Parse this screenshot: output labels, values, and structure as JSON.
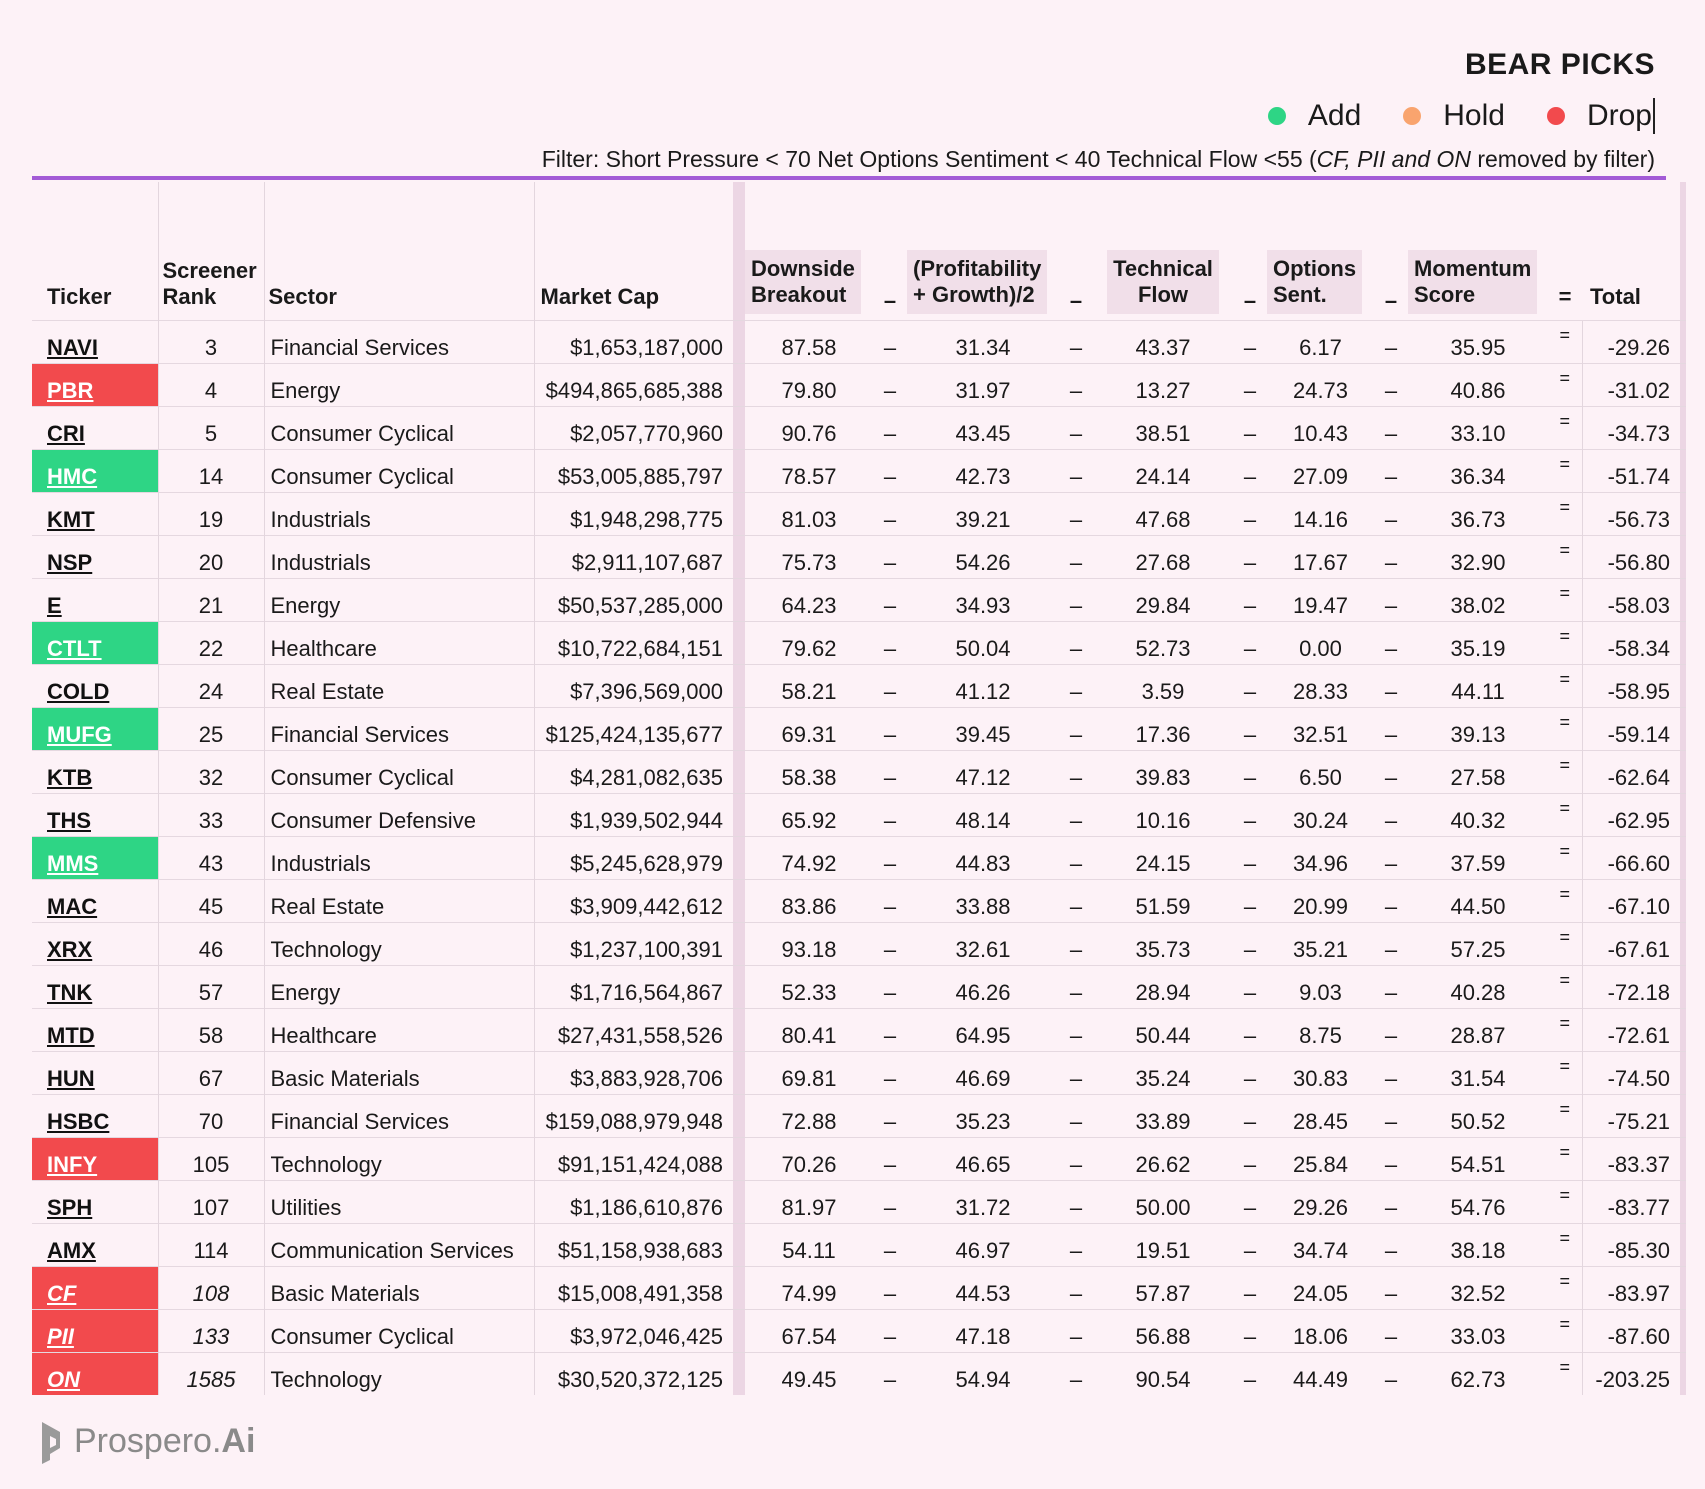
{
  "title": "BEAR PICKS",
  "legend": [
    {
      "label": "Add",
      "color": "#2ed585"
    },
    {
      "label": "Hold",
      "color": "#f9a46e"
    },
    {
      "label": "Drop",
      "color": "#f24a4d"
    }
  ],
  "filter": {
    "prefix": "Filter: Short Pressure < 70  Net Options Sentiment < 40 Technical Flow <55 (",
    "tickers": "CF, PII and ON",
    "suffix": "  removed by filter)"
  },
  "headers": {
    "ticker": "Ticker",
    "rank_1": "Screener",
    "rank_2": "Rank",
    "sector": "Sector",
    "mcap": "Market Cap",
    "downside_1": "Downside",
    "downside_2": "Breakout",
    "profit_1": "(Profitability",
    "profit_2": "+ Growth)/2",
    "tech_1": "Technical",
    "tech_2": "Flow",
    "opt_1": "Options",
    "opt_2": "Sent.",
    "mom_1": "Momentum",
    "mom_2": "Score",
    "total": "Total",
    "minus": "–",
    "equals": "="
  },
  "operators": {
    "minus": "–",
    "equals": "="
  },
  "rows": [
    {
      "ticker": "NAVI",
      "rank": "3",
      "sector": "Financial Services",
      "mcap": "$1,653,187,000",
      "downside": "87.58",
      "profit": "31.34",
      "tech": "43.37",
      "opt": "6.17",
      "mom": "35.95",
      "total": "-29.26",
      "status": "none"
    },
    {
      "ticker": "PBR",
      "rank": "4",
      "sector": "Energy",
      "mcap": "$494,865,685,388",
      "downside": "79.80",
      "profit": "31.97",
      "tech": "13.27",
      "opt": "24.73",
      "mom": "40.86",
      "total": "-31.02",
      "status": "drop"
    },
    {
      "ticker": "CRI",
      "rank": "5",
      "sector": "Consumer Cyclical",
      "mcap": "$2,057,770,960",
      "downside": "90.76",
      "profit": "43.45",
      "tech": "38.51",
      "opt": "10.43",
      "mom": "33.10",
      "total": "-34.73",
      "status": "none"
    },
    {
      "ticker": "HMC",
      "rank": "14",
      "sector": "Consumer Cyclical",
      "mcap": "$53,005,885,797",
      "downside": "78.57",
      "profit": "42.73",
      "tech": "24.14",
      "opt": "27.09",
      "mom": "36.34",
      "total": "-51.74",
      "status": "add"
    },
    {
      "ticker": "KMT",
      "rank": "19",
      "sector": "Industrials",
      "mcap": "$1,948,298,775",
      "downside": "81.03",
      "profit": "39.21",
      "tech": "47.68",
      "opt": "14.16",
      "mom": "36.73",
      "total": "-56.73",
      "status": "none"
    },
    {
      "ticker": "NSP",
      "rank": "20",
      "sector": "Industrials",
      "mcap": "$2,911,107,687",
      "downside": "75.73",
      "profit": "54.26",
      "tech": "27.68",
      "opt": "17.67",
      "mom": "32.90",
      "total": "-56.80",
      "status": "none"
    },
    {
      "ticker": "E",
      "rank": "21",
      "sector": "Energy",
      "mcap": "$50,537,285,000",
      "downside": "64.23",
      "profit": "34.93",
      "tech": "29.84",
      "opt": "19.47",
      "mom": "38.02",
      "total": "-58.03",
      "status": "none"
    },
    {
      "ticker": "CTLT",
      "rank": "22",
      "sector": "Healthcare",
      "mcap": "$10,722,684,151",
      "downside": "79.62",
      "profit": "50.04",
      "tech": "52.73",
      "opt": "0.00",
      "mom": "35.19",
      "total": "-58.34",
      "status": "add"
    },
    {
      "ticker": "COLD",
      "rank": "24",
      "sector": "Real Estate",
      "mcap": "$7,396,569,000",
      "downside": "58.21",
      "profit": "41.12",
      "tech": "3.59",
      "opt": "28.33",
      "mom": "44.11",
      "total": "-58.95",
      "status": "none"
    },
    {
      "ticker": "MUFG",
      "rank": "25",
      "sector": "Financial Services",
      "mcap": "$125,424,135,677",
      "downside": "69.31",
      "profit": "39.45",
      "tech": "17.36",
      "opt": "32.51",
      "mom": "39.13",
      "total": "-59.14",
      "status": "add"
    },
    {
      "ticker": "KTB",
      "rank": "32",
      "sector": "Consumer Cyclical",
      "mcap": "$4,281,082,635",
      "downside": "58.38",
      "profit": "47.12",
      "tech": "39.83",
      "opt": "6.50",
      "mom": "27.58",
      "total": "-62.64",
      "status": "none"
    },
    {
      "ticker": "THS",
      "rank": "33",
      "sector": "Consumer Defensive",
      "mcap": "$1,939,502,944",
      "downside": "65.92",
      "profit": "48.14",
      "tech": "10.16",
      "opt": "30.24",
      "mom": "40.32",
      "total": "-62.95",
      "status": "none"
    },
    {
      "ticker": "MMS",
      "rank": "43",
      "sector": "Industrials",
      "mcap": "$5,245,628,979",
      "downside": "74.92",
      "profit": "44.83",
      "tech": "24.15",
      "opt": "34.96",
      "mom": "37.59",
      "total": "-66.60",
      "status": "add"
    },
    {
      "ticker": "MAC",
      "rank": "45",
      "sector": "Real Estate",
      "mcap": "$3,909,442,612",
      "downside": "83.86",
      "profit": "33.88",
      "tech": "51.59",
      "opt": "20.99",
      "mom": "44.50",
      "total": "-67.10",
      "status": "none"
    },
    {
      "ticker": "XRX",
      "rank": "46",
      "sector": "Technology",
      "mcap": "$1,237,100,391",
      "downside": "93.18",
      "profit": "32.61",
      "tech": "35.73",
      "opt": "35.21",
      "mom": "57.25",
      "total": "-67.61",
      "status": "none"
    },
    {
      "ticker": "TNK",
      "rank": "57",
      "sector": "Energy",
      "mcap": "$1,716,564,867",
      "downside": "52.33",
      "profit": "46.26",
      "tech": "28.94",
      "opt": "9.03",
      "mom": "40.28",
      "total": "-72.18",
      "status": "none"
    },
    {
      "ticker": "MTD",
      "rank": "58",
      "sector": "Healthcare",
      "mcap": "$27,431,558,526",
      "downside": "80.41",
      "profit": "64.95",
      "tech": "50.44",
      "opt": "8.75",
      "mom": "28.87",
      "total": "-72.61",
      "status": "none"
    },
    {
      "ticker": "HUN",
      "rank": "67",
      "sector": "Basic Materials",
      "mcap": "$3,883,928,706",
      "downside": "69.81",
      "profit": "46.69",
      "tech": "35.24",
      "opt": "30.83",
      "mom": "31.54",
      "total": "-74.50",
      "status": "none"
    },
    {
      "ticker": "HSBC",
      "rank": "70",
      "sector": "Financial Services",
      "mcap": "$159,088,979,948",
      "downside": "72.88",
      "profit": "35.23",
      "tech": "33.89",
      "opt": "28.45",
      "mom": "50.52",
      "total": "-75.21",
      "status": "none"
    },
    {
      "ticker": "INFY",
      "rank": "105",
      "sector": "Technology",
      "mcap": "$91,151,424,088",
      "downside": "70.26",
      "profit": "46.65",
      "tech": "26.62",
      "opt": "25.84",
      "mom": "54.51",
      "total": "-83.37",
      "status": "drop"
    },
    {
      "ticker": "SPH",
      "rank": "107",
      "sector": "Utilities",
      "mcap": "$1,186,610,876",
      "downside": "81.97",
      "profit": "31.72",
      "tech": "50.00",
      "opt": "29.26",
      "mom": "54.76",
      "total": "-83.77",
      "status": "none"
    },
    {
      "ticker": "AMX",
      "rank": "114",
      "sector": "Communication Services",
      "mcap": "$51,158,938,683",
      "downside": "54.11",
      "profit": "46.97",
      "tech": "19.51",
      "opt": "34.74",
      "mom": "38.18",
      "total": "-85.30",
      "status": "none"
    },
    {
      "ticker": "CF",
      "rank": "108",
      "sector": "Basic Materials",
      "mcap": "$15,008,491,358",
      "downside": "74.99",
      "profit": "44.53",
      "tech": "57.87",
      "opt": "24.05",
      "mom": "32.52",
      "total": "-83.97",
      "status": "drop",
      "italic": true
    },
    {
      "ticker": "PII",
      "rank": "133",
      "sector": "Consumer Cyclical",
      "mcap": "$3,972,046,425",
      "downside": "67.54",
      "profit": "47.18",
      "tech": "56.88",
      "opt": "18.06",
      "mom": "33.03",
      "total": "-87.60",
      "status": "drop",
      "italic": true
    },
    {
      "ticker": "ON",
      "rank": "1585",
      "sector": "Technology",
      "mcap": "$30,520,372,125",
      "downside": "49.45",
      "profit": "54.94",
      "tech": "90.54",
      "opt": "44.49",
      "mom": "62.73",
      "total": "-203.25",
      "status": "drop",
      "italic": true
    }
  ],
  "logo": {
    "name": "Prospero.",
    "suffix": "Ai"
  }
}
